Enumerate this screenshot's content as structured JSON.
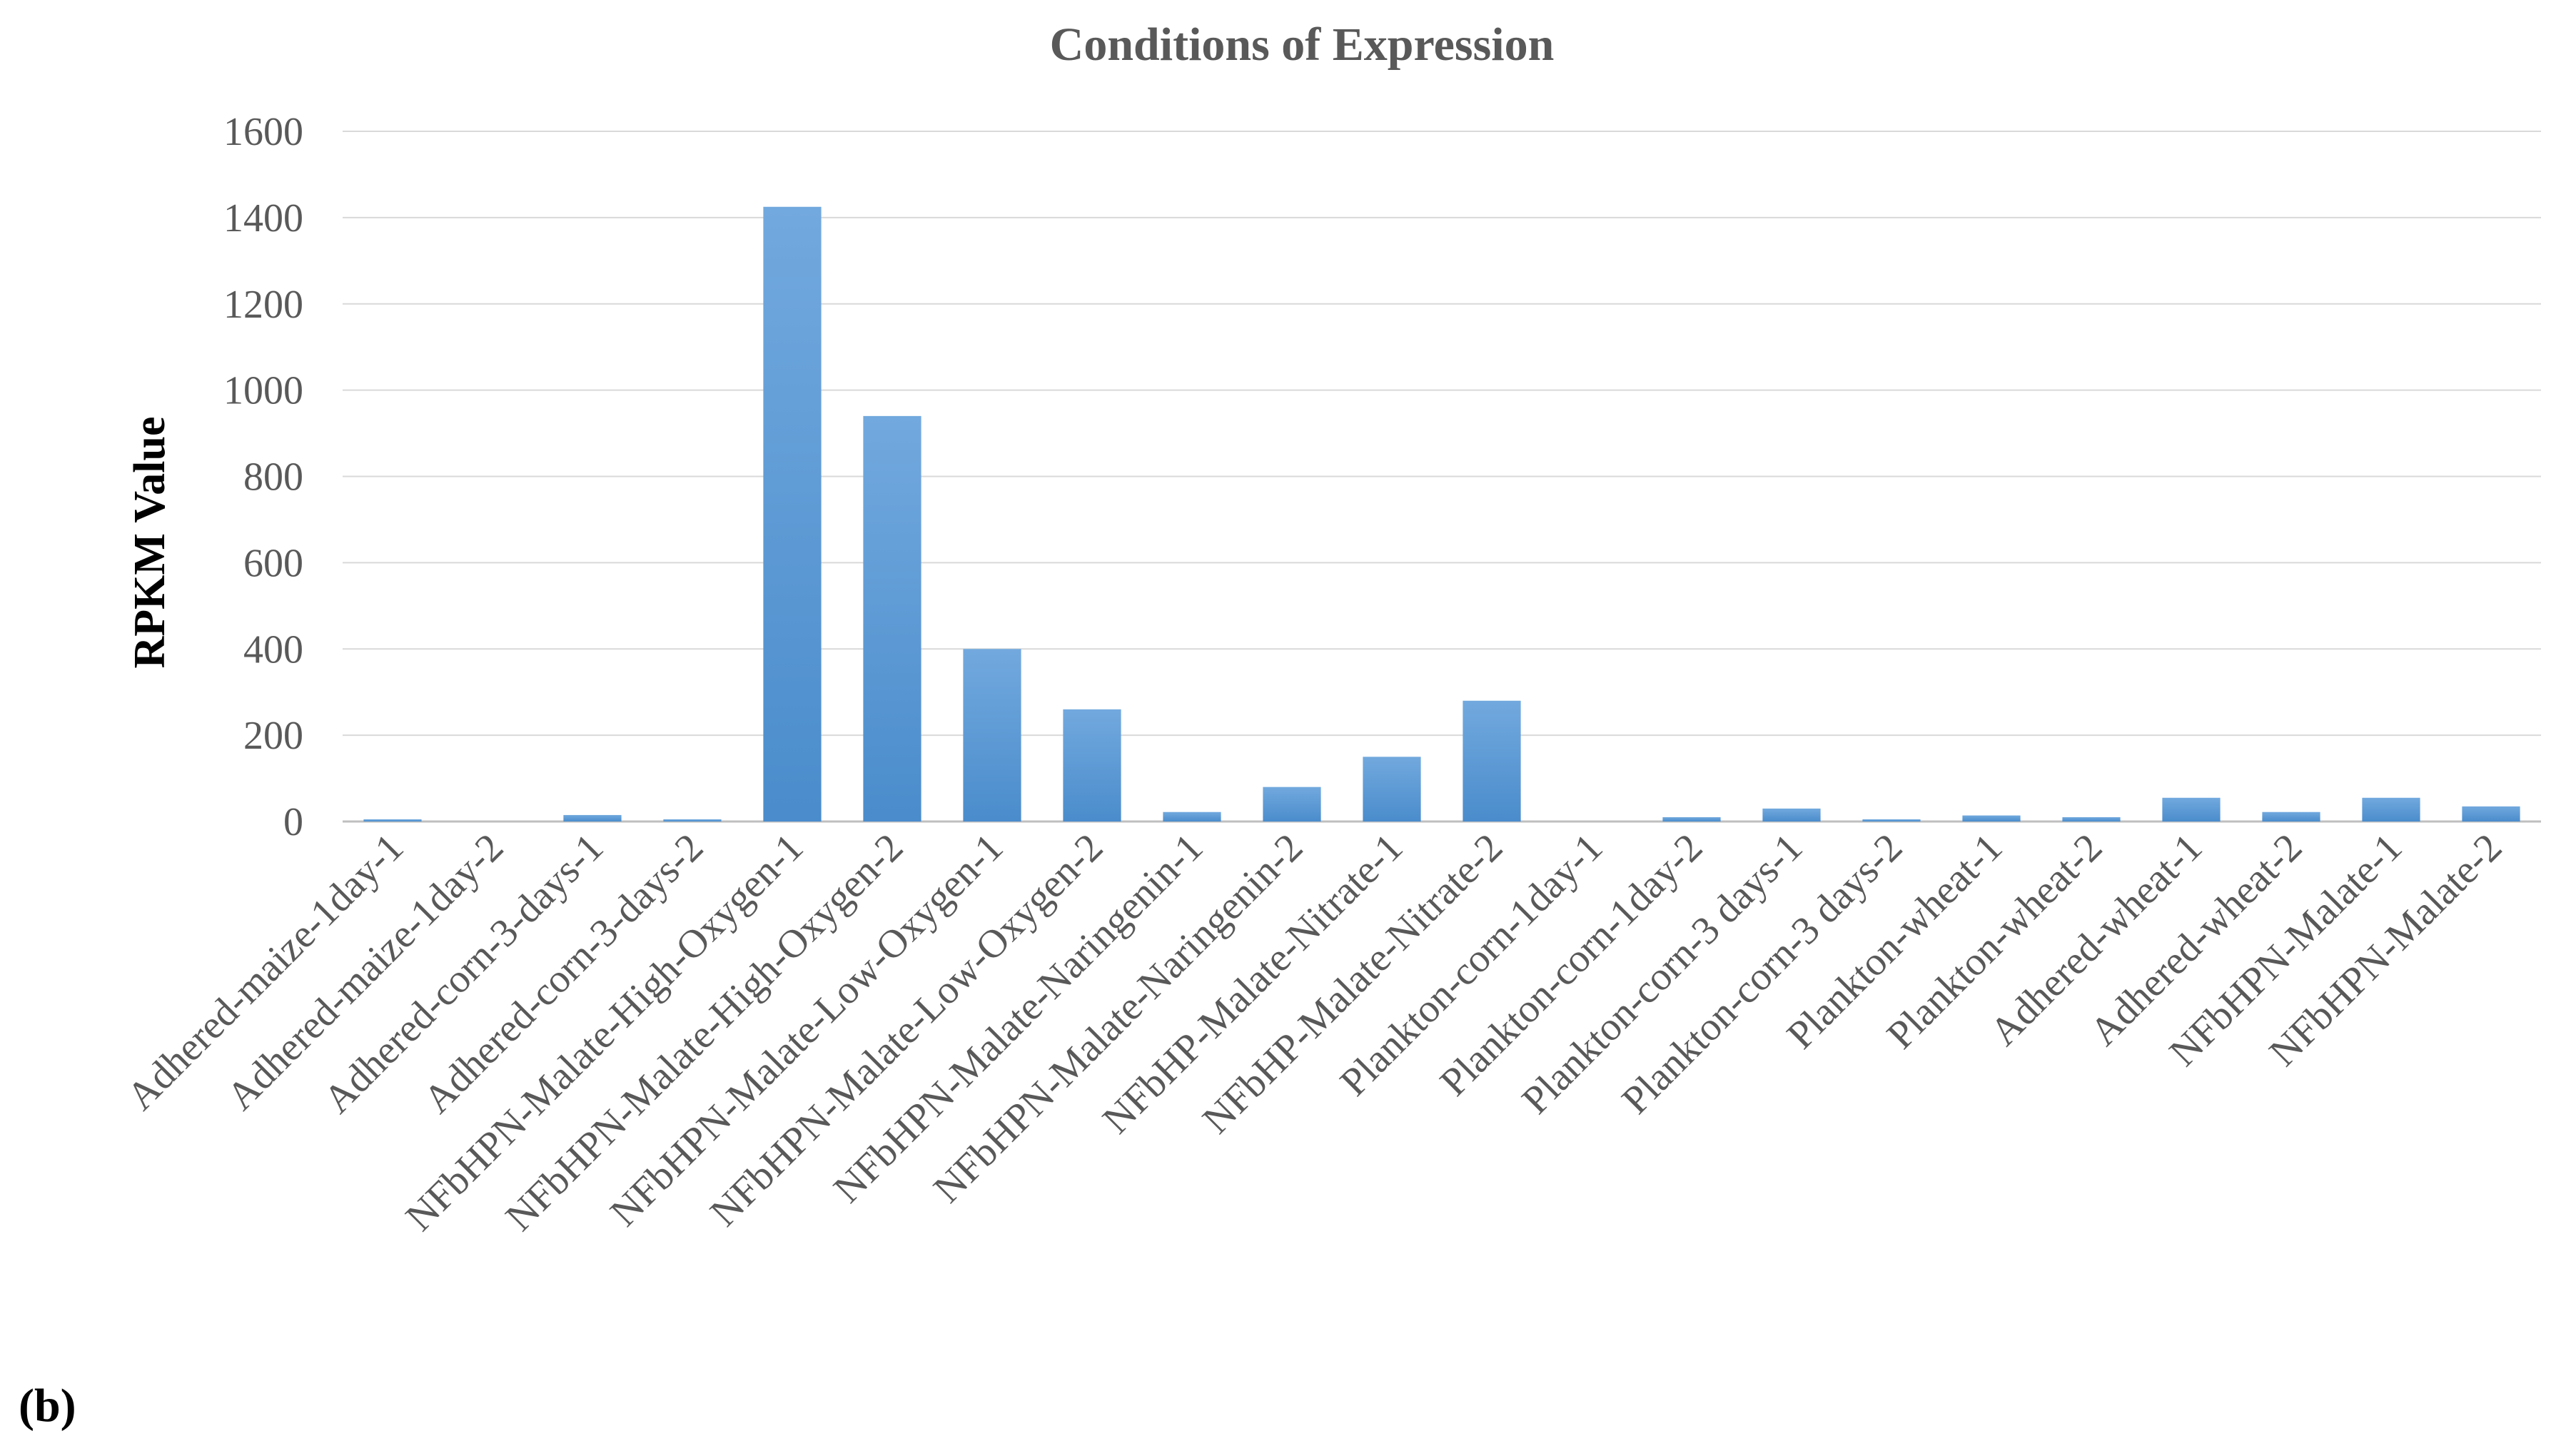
{
  "panel_label": "(b)",
  "chart_data": {
    "type": "bar",
    "title": "Conditions of Expression",
    "xlabel": "",
    "ylabel": "RPKM Value",
    "ylim": [
      0,
      1600
    ],
    "yticks": [
      0,
      200,
      400,
      600,
      800,
      1000,
      1200,
      1400,
      1600
    ],
    "grid": true,
    "legend": "none",
    "bar_color": "#5B9BD5",
    "categories": [
      "Adhered-maize-1day-1",
      "Adhered-maize-1day-2",
      "Adhered-corn-3-days-1",
      "Adhered-corn-3-days-2",
      "NFbHPN-Malate-High-Oxygen-1",
      "NFbHPN-Malate-High-Oxygen-2",
      "NFbHPN-Malate-Low-Oxygen-1",
      "NFbHPN-Malate-Low-Oxygen-2",
      "NFbHPN-Malate-Naringenin-1",
      "NFbHPN-Malate-Naringenin-2",
      "NFbHP-Malate-Nitrate-1",
      "NFbHP-Malate-Nitrate-2",
      "Plankton-corn-1day-1",
      "Plankton-corn-1day-2",
      "Plankton-corn-3 days-1",
      "Plankton-corn-3 days-2",
      "Plankton-wheat-1",
      "Plankton-wheat-2",
      "Adhered-wheat-1",
      "Adhered-wheat-2",
      "NFbHPN-Malate-1",
      "NFbHPN-Malate-2"
    ],
    "values": [
      5,
      0,
      15,
      5,
      1425,
      940,
      400,
      260,
      22,
      80,
      150,
      280,
      0,
      10,
      30,
      5,
      14,
      10,
      55,
      22,
      55,
      35
    ]
  }
}
